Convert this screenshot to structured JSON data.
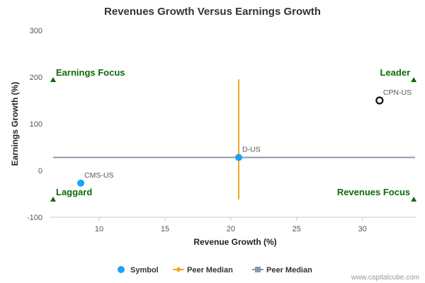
{
  "chart_data": {
    "type": "scatter",
    "title": "Revenues Growth Versus Earnings Growth",
    "xlabel": "Revenue Growth (%)",
    "ylabel": "Earnings Growth (%)",
    "xlim": [
      6.5,
      34
    ],
    "ylim": [
      -100,
      300
    ],
    "xticks": [
      10,
      15,
      20,
      25,
      30
    ],
    "yticks": [
      -100,
      0,
      100,
      200,
      300
    ],
    "grid": false,
    "points": [
      {
        "label": "CPN-US",
        "x": 31.3,
        "y": 150,
        "style": "open-circle",
        "color": "#111111"
      },
      {
        "label": "D-US",
        "x": 20.6,
        "y": 28,
        "style": "filled-circle",
        "color": "#1da1f2"
      },
      {
        "label": "CMS-US",
        "x": 8.6,
        "y": -27,
        "style": "filled-circle",
        "color": "#1da1f2"
      }
    ],
    "peer_median_revenue": {
      "x": 20.6,
      "y_from": -62,
      "y_to": 195,
      "color": "#f5a623"
    },
    "peer_median_earnings": {
      "y": 28,
      "x_from": 6.5,
      "x_to": 34,
      "color": "#8c9aa8"
    },
    "quadrants": [
      {
        "label": "Earnings Focus",
        "corner": "top-left",
        "marker_x": 6.5,
        "marker_y": 194
      },
      {
        "label": "Leader",
        "corner": "top-right",
        "marker_x": 33.9,
        "marker_y": 194
      },
      {
        "label": "Laggard",
        "corner": "bottom-left",
        "marker_x": 6.5,
        "marker_y": -62
      },
      {
        "label": "Revenues Focus",
        "corner": "bottom-right",
        "marker_x": 33.9,
        "marker_y": -62
      }
    ],
    "quadrant_marker_color": "#0a6a0a",
    "legend": {
      "placement": "bottom-center",
      "items": [
        {
          "label": "Symbol",
          "marker": "circle",
          "color": "#1da1f2"
        },
        {
          "label": "Peer Median",
          "marker": "diamond-line",
          "color": "#f5a623"
        },
        {
          "label": "Peer Median",
          "marker": "square-line",
          "color": "#8c9aa8"
        }
      ]
    }
  },
  "credit": "www.capitalcube.com"
}
